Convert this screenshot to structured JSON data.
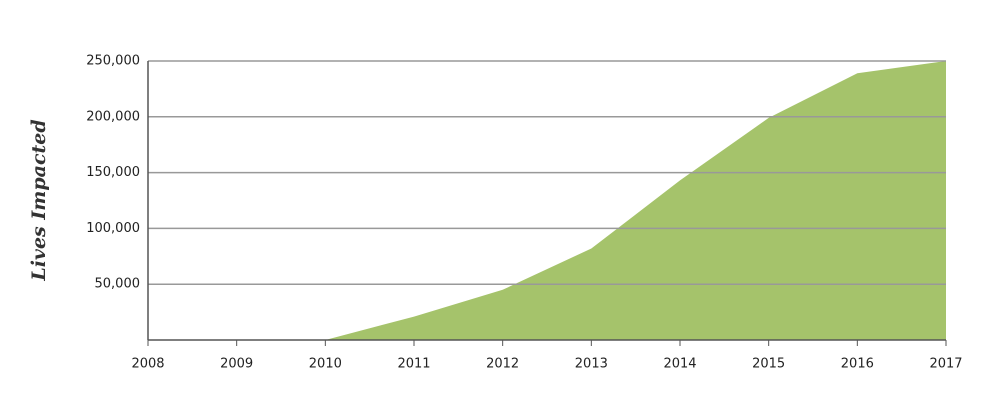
{
  "chart_data": {
    "type": "area",
    "y_label": "Lives Impacted",
    "x": [
      2010,
      2011,
      2012,
      2013,
      2014,
      2015,
      2016,
      2017
    ],
    "values": [
      0,
      21000,
      45000,
      82000,
      143000,
      199000,
      239000,
      250000
    ],
    "color": "#a5c36b",
    "xlim": [
      2008,
      2017
    ],
    "xticks": [
      2008,
      2009,
      2010,
      2011,
      2012,
      2013,
      2014,
      2015,
      2016,
      2017
    ],
    "ylim": [
      0,
      250000
    ],
    "yticks": [
      {
        "value": 50000,
        "label": "50,000"
      },
      {
        "value": 100000,
        "label": "100,000"
      },
      {
        "value": 150000,
        "label": "150,000"
      },
      {
        "value": 200000,
        "label": "200,000"
      },
      {
        "value": 250000,
        "label": "250,000"
      }
    ],
    "grid": true
  }
}
